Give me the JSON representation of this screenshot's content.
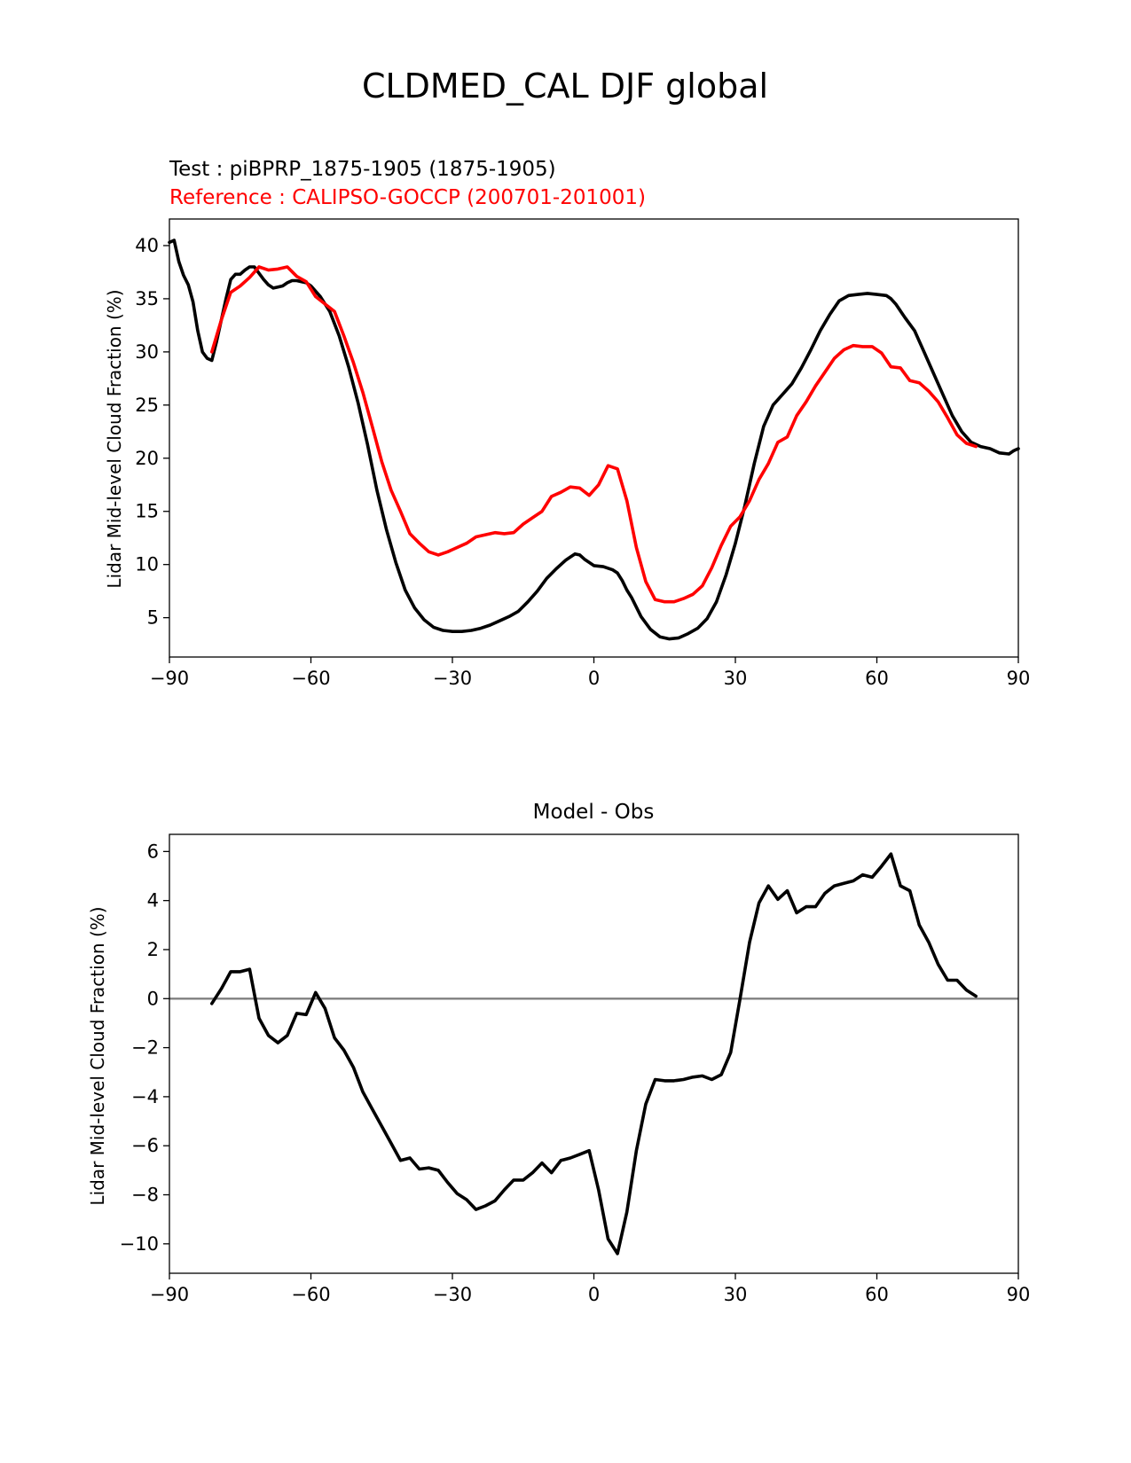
{
  "figure": {
    "title": "CLDMED_CAL DJF global",
    "line_colors": {
      "test": "#000000",
      "reference": "#ff0000",
      "zero_line": "#808080"
    }
  },
  "chart_data": [
    {
      "type": "line",
      "panel": "top",
      "test_label": "Test : piBPRP_1875-1905 (1875-1905)",
      "reference_label": "Reference : CALIPSO-GOCCP (200701-201001)",
      "xlabel": "",
      "ylabel": "Lidar Mid-level Cloud Fraction (%)",
      "xlim": [
        -90,
        90
      ],
      "ylim": [
        1.3,
        42.5
      ],
      "xticks": [
        -90,
        -60,
        -30,
        0,
        30,
        60,
        90
      ],
      "xtick_labels": [
        "−90",
        "−60",
        "−30",
        "0",
        "30",
        "60",
        "90"
      ],
      "yticks": [
        5,
        10,
        15,
        20,
        25,
        30,
        35,
        40
      ],
      "ytick_labels": [
        "5",
        "10",
        "15",
        "20",
        "25",
        "30",
        "35",
        "40"
      ],
      "grid": false,
      "series": [
        {
          "color": "#000000",
          "x": [
            -90,
            -89,
            -88,
            -87,
            -86,
            -85,
            -84,
            -83,
            -82,
            -81,
            -80,
            -79,
            -78,
            -77,
            -76,
            -75,
            -74,
            -73,
            -72,
            -71,
            -70,
            -69,
            -68,
            -67,
            -66,
            -65,
            -64,
            -63,
            -62,
            -61,
            -60,
            -58,
            -56,
            -54,
            -52,
            -50,
            -48,
            -46,
            -44,
            -42,
            -40,
            -38,
            -36,
            -34,
            -32,
            -30,
            -28,
            -26,
            -24,
            -22,
            -20,
            -18,
            -16,
            -14,
            -12,
            -10,
            -8,
            -6,
            -5,
            -4,
            -3,
            -2,
            0,
            2,
            4,
            5,
            6,
            7,
            8,
            10,
            12,
            14,
            16,
            18,
            20,
            22,
            24,
            26,
            28,
            30,
            32,
            34,
            36,
            38,
            40,
            42,
            44,
            46,
            48,
            50,
            52,
            54,
            56,
            58,
            60,
            62,
            63,
            64,
            66,
            68,
            70,
            72,
            74,
            76,
            78,
            80,
            82,
            84,
            86,
            88,
            89,
            90
          ],
          "values": [
            40.3,
            40.5,
            38.5,
            37.2,
            36.3,
            34.7,
            32.0,
            30.0,
            29.4,
            29.2,
            31.0,
            33.0,
            35.0,
            36.8,
            37.3,
            37.3,
            37.7,
            38.0,
            38.0,
            37.4,
            36.8,
            36.3,
            36.0,
            36.1,
            36.2,
            36.5,
            36.7,
            36.7,
            36.6,
            36.5,
            36.2,
            35.2,
            33.8,
            31.5,
            28.6,
            25.2,
            21.3,
            17.0,
            13.3,
            10.2,
            7.6,
            5.9,
            4.8,
            4.1,
            3.8,
            3.7,
            3.7,
            3.8,
            4.0,
            4.3,
            4.7,
            5.1,
            5.6,
            6.5,
            7.5,
            8.7,
            9.6,
            10.4,
            10.7,
            11.0,
            10.9,
            10.5,
            9.9,
            9.8,
            9.5,
            9.2,
            8.5,
            7.6,
            6.9,
            5.1,
            3.9,
            3.2,
            3.0,
            3.1,
            3.5,
            4.0,
            4.9,
            6.5,
            9.0,
            12.0,
            15.5,
            19.5,
            23.0,
            25.0,
            26.0,
            27.0,
            28.5,
            30.2,
            32.0,
            33.5,
            34.8,
            35.3,
            35.4,
            35.5,
            35.4,
            35.3,
            35.0,
            34.5,
            33.2,
            32.0,
            30.0,
            28.0,
            26.0,
            24.0,
            22.5,
            21.5,
            21.1,
            20.9,
            20.5,
            20.4,
            20.7,
            20.9
          ]
        },
        {
          "color": "#ff0000",
          "x": [
            -81,
            -79,
            -77,
            -75,
            -73,
            -71,
            -69,
            -67,
            -65,
            -63,
            -61,
            -59,
            -57,
            -55,
            -53,
            -51,
            -49,
            -47,
            -45,
            -43,
            -41,
            -39,
            -37,
            -35,
            -33,
            -31,
            -29,
            -27,
            -25,
            -23,
            -21,
            -19,
            -17,
            -15,
            -13,
            -11,
            -9,
            -7,
            -5,
            -3,
            -1,
            1,
            3,
            5,
            7,
            9,
            11,
            13,
            15,
            17,
            19,
            21,
            23,
            25,
            27,
            29,
            31,
            33,
            35,
            37,
            39,
            41,
            43,
            45,
            47,
            49,
            51,
            53,
            55,
            57,
            59,
            61,
            63,
            65,
            67,
            69,
            71,
            73,
            75,
            77,
            79,
            81
          ],
          "values": [
            30.0,
            33.0,
            35.6,
            36.2,
            37.0,
            38.0,
            37.7,
            37.8,
            38.0,
            37.1,
            36.6,
            35.2,
            34.5,
            33.8,
            31.5,
            29.0,
            26.2,
            23.0,
            19.7,
            17.0,
            15.0,
            12.9,
            12.0,
            11.2,
            10.9,
            11.2,
            11.6,
            12.0,
            12.6,
            12.8,
            13.0,
            12.9,
            13.0,
            13.8,
            14.4,
            15.0,
            16.4,
            16.8,
            17.3,
            17.2,
            16.5,
            17.5,
            19.3,
            19.0,
            16.0,
            11.6,
            8.4,
            6.7,
            6.5,
            6.5,
            6.8,
            7.2,
            8.0,
            9.7,
            11.8,
            13.6,
            14.5,
            16.0,
            18.0,
            19.5,
            21.5,
            22.0,
            24.0,
            25.3,
            26.8,
            28.1,
            29.4,
            30.2,
            30.6,
            30.5,
            30.5,
            29.9,
            28.6,
            28.5,
            27.3,
            27.1,
            26.3,
            25.3,
            23.8,
            22.2,
            21.4,
            21.1
          ]
        }
      ]
    },
    {
      "type": "line",
      "panel": "bottom",
      "title": "Model - Obs",
      "xlabel": "",
      "ylabel": "Lidar Mid-level Cloud Fraction (%)",
      "xlim": [
        -90,
        90
      ],
      "ylim": [
        -11.2,
        6.7
      ],
      "xticks": [
        -90,
        -60,
        -30,
        0,
        30,
        60,
        90
      ],
      "xtick_labels": [
        "−90",
        "−60",
        "−30",
        "0",
        "30",
        "60",
        "90"
      ],
      "yticks": [
        -10,
        -8,
        -6,
        -4,
        -2,
        0,
        2,
        4,
        6
      ],
      "ytick_labels": [
        "−10",
        "−8",
        "−6",
        "−4",
        "−2",
        "0",
        "2",
        "4",
        "6"
      ],
      "grid": false,
      "zero_line": 0,
      "series": [
        {
          "color": "#000000",
          "x": [
            -81,
            -79,
            -77,
            -75,
            -73,
            -71,
            -69,
            -67,
            -65,
            -63,
            -61,
            -59,
            -57,
            -55,
            -53,
            -51,
            -49,
            -47,
            -45,
            -43,
            -41,
            -39,
            -37,
            -35,
            -33,
            -31,
            -29,
            -27,
            -25,
            -23,
            -21,
            -19,
            -17,
            -15,
            -13,
            -11,
            -9,
            -7,
            -5,
            -3,
            -1,
            1,
            3,
            5,
            7,
            9,
            11,
            13,
            15,
            17,
            19,
            21,
            23,
            25,
            27,
            29,
            31,
            33,
            35,
            37,
            39,
            41,
            43,
            45,
            47,
            49,
            51,
            53,
            55,
            57,
            59,
            61,
            63,
            65,
            67,
            69,
            71,
            73,
            75,
            77,
            79,
            81
          ],
          "values": [
            -0.2,
            0.4,
            1.1,
            1.1,
            1.2,
            -0.8,
            -1.5,
            -1.8,
            -1.5,
            -0.6,
            -0.65,
            0.25,
            -0.4,
            -1.6,
            -2.1,
            -2.8,
            -3.8,
            -4.5,
            -5.2,
            -5.9,
            -6.6,
            -6.5,
            -6.95,
            -6.9,
            -7.0,
            -7.5,
            -7.95,
            -8.2,
            -8.6,
            -8.45,
            -8.25,
            -7.8,
            -7.4,
            -7.4,
            -7.1,
            -6.7,
            -7.1,
            -6.6,
            -6.5,
            -6.35,
            -6.2,
            -7.8,
            -9.8,
            -10.4,
            -8.7,
            -6.2,
            -4.3,
            -3.3,
            -3.35,
            -3.35,
            -3.3,
            -3.2,
            -3.15,
            -3.3,
            -3.1,
            -2.2,
            0.0,
            2.3,
            3.9,
            4.6,
            4.05,
            4.4,
            3.5,
            3.75,
            3.75,
            4.3,
            4.6,
            4.7,
            4.8,
            5.05,
            4.95,
            5.4,
            5.9,
            4.6,
            4.4,
            3.0,
            2.3,
            1.4,
            0.75,
            0.75,
            0.35,
            0.1
          ]
        }
      ]
    }
  ]
}
